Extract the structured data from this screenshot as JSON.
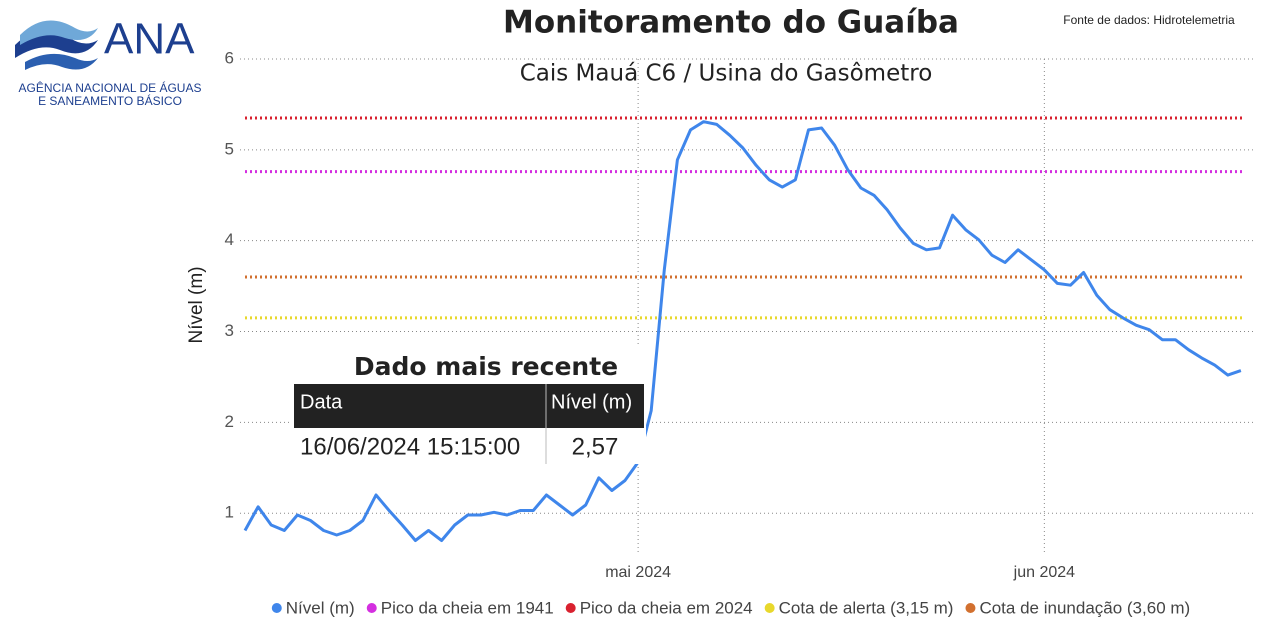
{
  "logo": {
    "name": "ANA",
    "line1": "AGÊNCIA NACIONAL DE ÁGUAS",
    "line2": "E SANEAMENTO BÁSICO"
  },
  "source": "Fonte de dados: Hidrotelemetria",
  "latest": {
    "title": "Dado mais recente",
    "headers": [
      "Data",
      "Nível (m)"
    ],
    "row": [
      "16/06/2024 15:15:00",
      "2,57"
    ]
  },
  "chart_data": {
    "type": "line",
    "title": "Monitoramento do Guaíba",
    "subtitle": "Cais Mauá C6 / Usina do Gasômetro",
    "y_label": "Nível (m)",
    "x": [
      "2024-04-01",
      "2024-04-02",
      "2024-04-03",
      "2024-04-04",
      "2024-04-05",
      "2024-04-06",
      "2024-04-07",
      "2024-04-08",
      "2024-04-09",
      "2024-04-10",
      "2024-04-11",
      "2024-04-12",
      "2024-04-13",
      "2024-04-14",
      "2024-04-15",
      "2024-04-16",
      "2024-04-17",
      "2024-04-18",
      "2024-04-19",
      "2024-04-20",
      "2024-04-21",
      "2024-04-22",
      "2024-04-23",
      "2024-04-24",
      "2024-04-25",
      "2024-04-26",
      "2024-04-27",
      "2024-04-28",
      "2024-04-29",
      "2024-04-30",
      "2024-05-01",
      "2024-05-02",
      "2024-05-03",
      "2024-05-04",
      "2024-05-05",
      "2024-05-06",
      "2024-05-07",
      "2024-05-08",
      "2024-05-09",
      "2024-05-10",
      "2024-05-11",
      "2024-05-12",
      "2024-05-13",
      "2024-05-14",
      "2024-05-15",
      "2024-05-16",
      "2024-05-17",
      "2024-05-18",
      "2024-05-19",
      "2024-05-20",
      "2024-05-21",
      "2024-05-22",
      "2024-05-23",
      "2024-05-24",
      "2024-05-25",
      "2024-05-26",
      "2024-05-27",
      "2024-05-28",
      "2024-05-29",
      "2024-05-30",
      "2024-05-31",
      "2024-06-01",
      "2024-06-02",
      "2024-06-03",
      "2024-06-04",
      "2024-06-05",
      "2024-06-06",
      "2024-06-07",
      "2024-06-08",
      "2024-06-09",
      "2024-06-10",
      "2024-06-11",
      "2024-06-12",
      "2024-06-13",
      "2024-06-14",
      "2024-06-15",
      "2024-06-16"
    ],
    "series": [
      {
        "name": "Nível (m)",
        "color": "#3f86eb",
        "values": [
          0.81,
          1.07,
          0.87,
          0.81,
          0.98,
          0.92,
          0.81,
          0.76,
          0.81,
          0.92,
          1.2,
          1.03,
          0.87,
          0.7,
          0.81,
          0.7,
          0.87,
          0.98,
          0.98,
          1.01,
          0.98,
          1.03,
          1.03,
          1.2,
          1.09,
          0.98,
          1.09,
          1.39,
          1.25,
          1.36,
          1.56,
          2.13,
          3.68,
          4.89,
          5.22,
          5.31,
          5.28,
          5.16,
          5.02,
          4.83,
          4.67,
          4.59,
          4.67,
          5.22,
          5.24,
          5.05,
          4.78,
          4.58,
          4.5,
          4.34,
          4.14,
          3.97,
          3.9,
          3.92,
          4.28,
          4.12,
          4.01,
          3.84,
          3.76,
          3.9,
          3.79,
          3.68,
          3.53,
          3.51,
          3.65,
          3.4,
          3.24,
          3.15,
          3.07,
          3.02,
          2.91,
          2.91,
          2.8,
          2.71,
          2.63,
          2.52,
          2.57
        ]
      }
    ],
    "reference_lines": [
      {
        "name": "Pico da cheia em 1941",
        "color": "#d42fe0",
        "value": 4.76
      },
      {
        "name": "Pico da cheia em 2024",
        "color": "#d9212f",
        "value": 5.35
      },
      {
        "name": "Cota de alerta (3,15 m)",
        "color": "#e8d82c",
        "value": 3.15
      },
      {
        "name": "Cota de inundação (3,60 m)",
        "color": "#d2702f",
        "value": 3.6
      }
    ],
    "xlim": [
      "2024-04-01",
      "2024-06-17"
    ],
    "xticks": [
      {
        "value": "2024-05-01",
        "label": "mai 2024"
      },
      {
        "value": "2024-06-01",
        "label": "jun 2024"
      }
    ],
    "ylim": [
      0.65,
      6
    ],
    "yticks": [
      1,
      2,
      3,
      4,
      5,
      6
    ],
    "grid": true
  }
}
